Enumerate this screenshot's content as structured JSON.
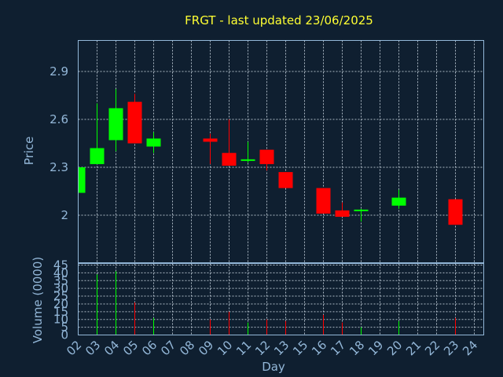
{
  "chart_data": {
    "type": "candlestick",
    "title": "FRGT - last updated 23/06/2025",
    "xlabel": "Day",
    "x_ticks": [
      "02",
      "03",
      "04",
      "05",
      "06",
      "07",
      "08",
      "09",
      "10",
      "11",
      "12",
      "13",
      "15",
      "16",
      "17",
      "18",
      "19",
      "20",
      "21",
      "22",
      "23",
      "24"
    ],
    "price_panel": {
      "ylabel": "Price",
      "ylim": [
        1.7,
        2.11
      ],
      "y_ticks": [
        "2",
        "2.3",
        "2.6",
        "2.9"
      ],
      "y_tick_values": [
        2.0,
        2.3,
        2.6,
        2.9
      ],
      "colors": {
        "up": "#00ff00",
        "down": "#ff0000"
      }
    },
    "candles": [
      {
        "day": "02",
        "open": 2.14,
        "close": 2.3,
        "high": 2.3,
        "low": 2.14
      },
      {
        "day": "03",
        "open": 2.32,
        "close": 2.42,
        "high": 2.7,
        "low": 2.32
      },
      {
        "day": "04",
        "open": 2.47,
        "close": 2.67,
        "high": 2.79,
        "low": 2.4
      },
      {
        "day": "05",
        "open": 2.71,
        "close": 2.45,
        "high": 2.76,
        "low": 2.45
      },
      {
        "day": "06",
        "open": 2.43,
        "close": 2.48,
        "high": 2.52,
        "low": 2.39
      },
      {
        "day": "09",
        "open": 2.48,
        "close": 2.46,
        "high": 2.51,
        "low": 2.32
      },
      {
        "day": "10",
        "open": 2.39,
        "close": 2.31,
        "high": 2.6,
        "low": 2.31
      },
      {
        "day": "11",
        "open": 2.34,
        "close": 2.35,
        "high": 2.46,
        "low": 2.33
      },
      {
        "day": "12",
        "open": 2.41,
        "close": 2.32,
        "high": 2.41,
        "low": 2.28
      },
      {
        "day": "13",
        "open": 2.27,
        "close": 2.17,
        "high": 2.27,
        "low": 2.17
      },
      {
        "day": "16",
        "open": 2.17,
        "close": 2.01,
        "high": 2.17,
        "low": 2.01
      },
      {
        "day": "17",
        "open": 2.03,
        "close": 1.99,
        "high": 2.08,
        "low": 1.99
      },
      {
        "day": "18",
        "open": 2.03,
        "close": 2.035,
        "high": 2.04,
        "low": 1.96
      },
      {
        "day": "20",
        "open": 2.06,
        "close": 2.11,
        "high": 2.16,
        "low": 2.04
      },
      {
        "day": "23",
        "open": 2.1,
        "close": 1.94,
        "high": 2.1,
        "low": 1.94
      }
    ],
    "volume_panel": {
      "ylabel": "Volume (0000)",
      "ylim": [
        0,
        45
      ],
      "y_ticks": [
        "0",
        "5",
        "10",
        "15",
        "20",
        "25",
        "30",
        "35",
        "40",
        "45"
      ],
      "y_tick_values": [
        0,
        5,
        10,
        15,
        20,
        25,
        30,
        35,
        40,
        45
      ],
      "values": [
        {
          "day": "03",
          "value": 39,
          "dir": "up"
        },
        {
          "day": "04",
          "value": 41,
          "dir": "up"
        },
        {
          "day": "05",
          "value": 21,
          "dir": "down"
        },
        {
          "day": "06",
          "value": 11,
          "dir": "up"
        },
        {
          "day": "09",
          "value": 10,
          "dir": "down"
        },
        {
          "day": "10",
          "value": 15,
          "dir": "down"
        },
        {
          "day": "11",
          "value": 8,
          "dir": "up"
        },
        {
          "day": "12",
          "value": 10,
          "dir": "down"
        },
        {
          "day": "13",
          "value": 9,
          "dir": "down"
        },
        {
          "day": "16",
          "value": 13,
          "dir": "down"
        },
        {
          "day": "17",
          "value": 8,
          "dir": "down"
        },
        {
          "day": "18",
          "value": 5,
          "dir": "up"
        },
        {
          "day": "20",
          "value": 9,
          "dir": "up"
        },
        {
          "day": "23",
          "value": 11,
          "dir": "down"
        }
      ]
    },
    "grid": true
  }
}
